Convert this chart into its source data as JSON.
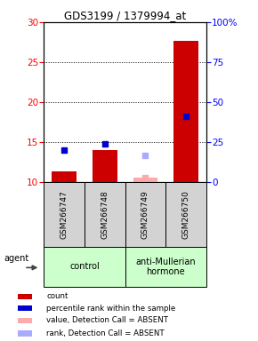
{
  "title": "GDS3199 / 1379994_at",
  "samples": [
    "GSM266747",
    "GSM266748",
    "GSM266749",
    "GSM266750"
  ],
  "control_label": "control",
  "treatment_label": "anti-Mullerian\nhormone",
  "ylim_left": [
    10,
    30
  ],
  "ylim_right": [
    0,
    100
  ],
  "yticks_left": [
    10,
    15,
    20,
    25,
    30
  ],
  "yticks_right": [
    0,
    25,
    50,
    75,
    100
  ],
  "ytick_labels_right": [
    "0",
    "25",
    "50",
    "75",
    "100%"
  ],
  "red_bars": [
    11.4,
    14.0,
    10.6,
    27.7
  ],
  "blue_squares": [
    14.0,
    14.8,
    null,
    18.3
  ],
  "pink_squares": [
    null,
    null,
    10.6,
    null
  ],
  "lavender_squares": [
    null,
    null,
    13.4,
    null
  ],
  "detection_absent": [
    false,
    false,
    true,
    false
  ],
  "bar_bottom": 10,
  "dotted_lines": [
    15,
    20,
    25
  ],
  "legend_colors": [
    "#cc0000",
    "#0000cc",
    "#ffaaaa",
    "#aaaaff"
  ],
  "legend_labels": [
    "count",
    "percentile rank within the sample",
    "value, Detection Call = ABSENT",
    "rank, Detection Call = ABSENT"
  ]
}
